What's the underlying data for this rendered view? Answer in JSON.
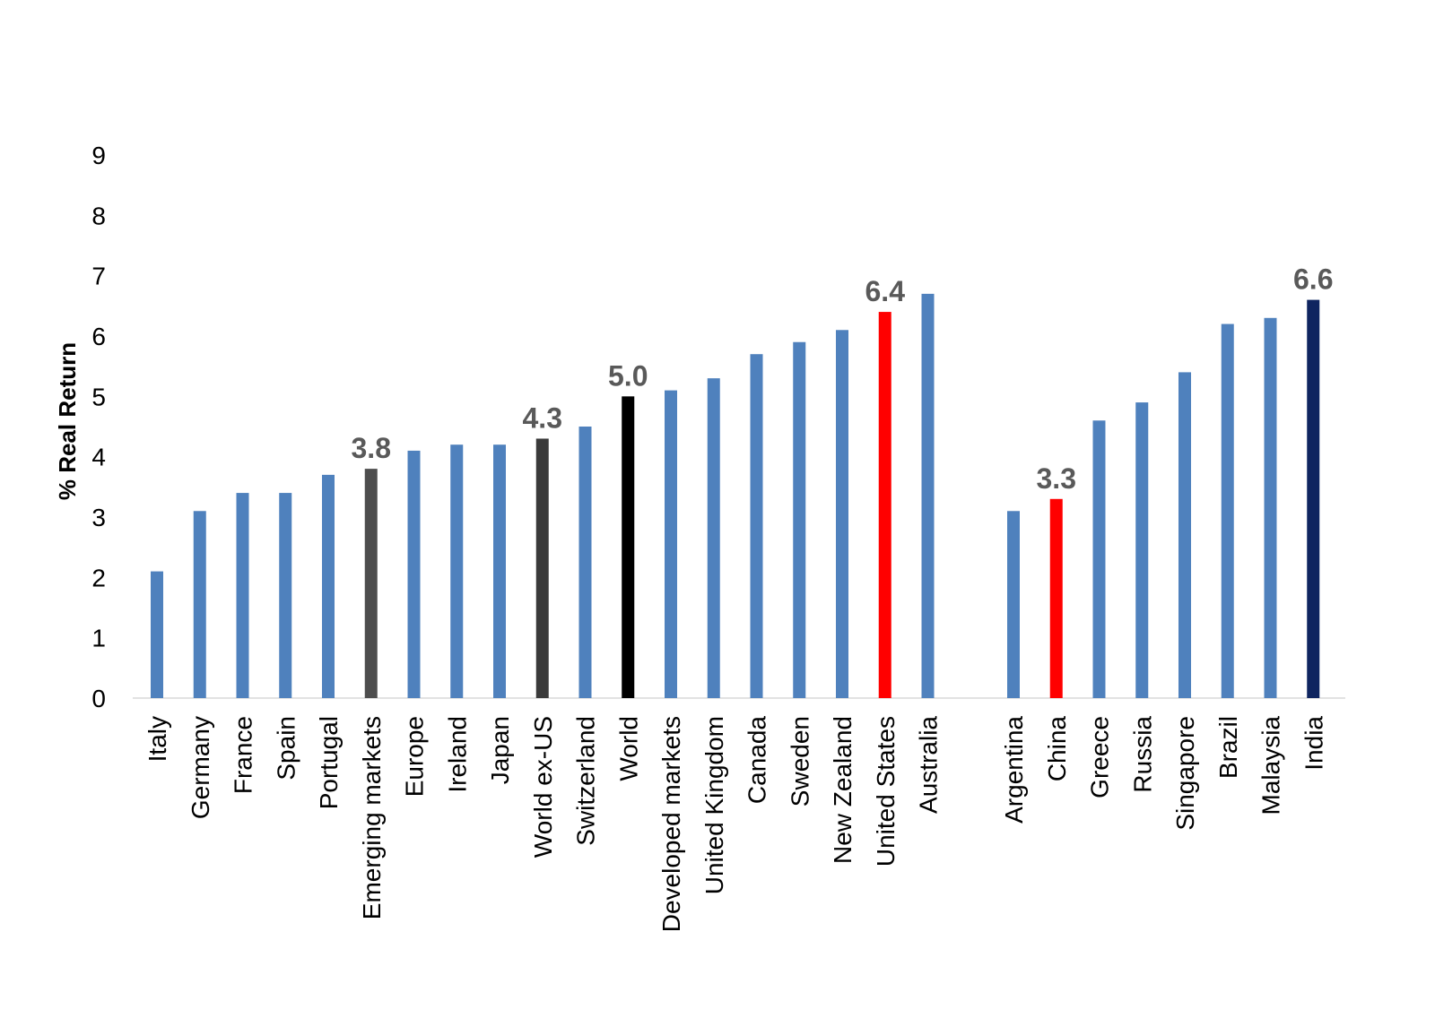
{
  "chart_data": {
    "type": "bar",
    "ylabel": "% Real Return",
    "ylim": [
      0,
      9
    ],
    "yticks": [
      "0",
      "1",
      "2",
      "3",
      "4",
      "5",
      "6",
      "7",
      "8",
      "9"
    ],
    "grid": false,
    "legend": "none",
    "groups": [
      {
        "categories": [
          "Italy",
          "Germany",
          "France",
          "Spain",
          "Portugal",
          "Emerging markets",
          "Europe",
          "Ireland",
          "Japan",
          "World ex-US",
          "Switzerland",
          "World",
          "Developed markets",
          "United Kingdom",
          "Canada",
          "Sweden",
          "New Zealand",
          "United States",
          "Australia"
        ],
        "values": [
          2.1,
          3.1,
          3.4,
          3.4,
          3.7,
          3.8,
          4.1,
          4.2,
          4.2,
          4.3,
          4.5,
          5.0,
          5.1,
          5.3,
          5.7,
          5.9,
          6.1,
          6.4,
          6.7
        ],
        "colors": [
          "#4f81bd",
          "#4f81bd",
          "#4f81bd",
          "#4f81bd",
          "#4f81bd",
          "#4d4d4d",
          "#4f81bd",
          "#4f81bd",
          "#4f81bd",
          "#3a3a3a",
          "#4f81bd",
          "#000000",
          "#4f81bd",
          "#4f81bd",
          "#4f81bd",
          "#4f81bd",
          "#4f81bd",
          "#ff0000",
          "#4f81bd"
        ],
        "labels": [
          "",
          "",
          "",
          "",
          "",
          "3.8",
          "",
          "",
          "",
          "4.3",
          "",
          "5.0",
          "",
          "",
          "",
          "",
          "",
          "6.4",
          ""
        ]
      },
      {
        "categories": [
          "Argentina",
          "China",
          "Greece",
          "Russia",
          "Singapore",
          "Brazil",
          "Malaysia",
          "India"
        ],
        "values": [
          3.1,
          3.3,
          4.6,
          4.9,
          5.4,
          6.2,
          6.3,
          6.6
        ],
        "colors": [
          "#4f81bd",
          "#ff0000",
          "#4f81bd",
          "#4f81bd",
          "#4f81bd",
          "#4f81bd",
          "#4f81bd",
          "#0f2560"
        ],
        "labels": [
          "",
          "3.3",
          "",
          "",
          "",
          "",
          "",
          "6.6"
        ]
      }
    ],
    "label_color": "#595959"
  }
}
